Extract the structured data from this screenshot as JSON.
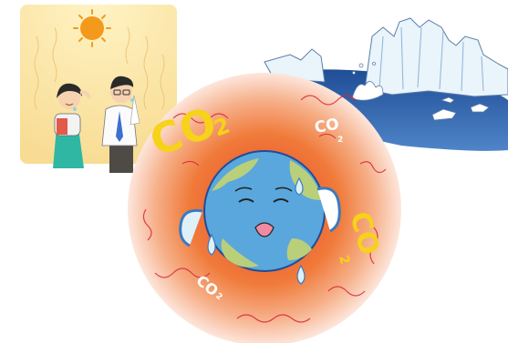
{
  "illustration": {
    "labels": {
      "co2_large": "CO",
      "co2_large_sub": "2",
      "co2_small_top": "CO",
      "co2_small_top_sub": "2",
      "co2_right": "CO",
      "co2_right_sub": "2",
      "co2_bottom": "CO",
      "co2_bottom_sub": "2"
    },
    "colors": {
      "heat_panel": "#fbe9b4",
      "sun": "#f39a1c",
      "ocean": "#2f5fa8",
      "glacier": "#e9f4fb",
      "glow_outer": "#fde6dc",
      "glow_inner": "#f07a3a",
      "earth_water": "#5aa7dd",
      "earth_land": "#b9cf7a",
      "co2_yellow": "#f6d21a",
      "co2_white": "#ffffff"
    },
    "scenes": [
      "heat-wave-people",
      "melting-glacier",
      "suffering-earth"
    ]
  }
}
